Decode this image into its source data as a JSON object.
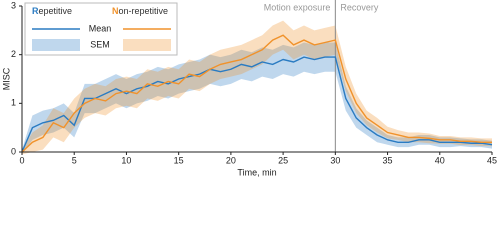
{
  "chart_data": {
    "type": "line",
    "xlabel": "Time, min",
    "ylabel": "MISC",
    "x": [
      0,
      1,
      2,
      3,
      4,
      5,
      6,
      7,
      8,
      9,
      10,
      11,
      12,
      13,
      14,
      15,
      16,
      17,
      18,
      19,
      20,
      21,
      22,
      23,
      24,
      25,
      26,
      27,
      28,
      29,
      30,
      31,
      32,
      33,
      34,
      35,
      36,
      37,
      38,
      39,
      40,
      41,
      42,
      43,
      44,
      45
    ],
    "series": [
      {
        "name": "Repetitive",
        "color": "#2a7bc2",
        "values": [
          0,
          0.5,
          0.6,
          0.65,
          0.75,
          0.55,
          1.1,
          1.1,
          1.2,
          1.3,
          1.2,
          1.3,
          1.35,
          1.45,
          1.4,
          1.5,
          1.55,
          1.6,
          1.7,
          1.65,
          1.7,
          1.8,
          1.75,
          1.85,
          1.8,
          1.9,
          1.85,
          1.95,
          1.9,
          1.95,
          1.95,
          1.1,
          0.7,
          0.5,
          0.35,
          0.25,
          0.2,
          0.2,
          0.25,
          0.25,
          0.2,
          0.2,
          0.2,
          0.18,
          0.18,
          0.15
        ],
        "sem": [
          0.05,
          0.25,
          0.25,
          0.25,
          0.25,
          0.25,
          0.3,
          0.3,
          0.3,
          0.3,
          0.3,
          0.3,
          0.3,
          0.3,
          0.3,
          0.3,
          0.3,
          0.3,
          0.3,
          0.3,
          0.3,
          0.3,
          0.3,
          0.3,
          0.3,
          0.3,
          0.3,
          0.3,
          0.3,
          0.3,
          0.3,
          0.25,
          0.2,
          0.15,
          0.15,
          0.1,
          0.1,
          0.1,
          0.1,
          0.1,
          0.1,
          0.1,
          0.08,
          0.08,
          0.08,
          0.08
        ]
      },
      {
        "name": "Non-repetitive",
        "color": "#f0922b",
        "values": [
          0,
          0.2,
          0.3,
          0.6,
          0.5,
          0.8,
          1.0,
          1.1,
          1.05,
          1.2,
          1.25,
          1.2,
          1.4,
          1.35,
          1.45,
          1.4,
          1.6,
          1.55,
          1.7,
          1.8,
          1.85,
          1.9,
          2.0,
          2.1,
          2.3,
          2.4,
          2.2,
          2.3,
          2.2,
          2.25,
          2.3,
          1.5,
          1.0,
          0.7,
          0.55,
          0.4,
          0.35,
          0.3,
          0.3,
          0.28,
          0.25,
          0.25,
          0.22,
          0.22,
          0.2,
          0.2
        ],
        "sem": [
          0.05,
          0.2,
          0.25,
          0.3,
          0.3,
          0.3,
          0.3,
          0.3,
          0.3,
          0.3,
          0.3,
          0.3,
          0.3,
          0.3,
          0.3,
          0.3,
          0.3,
          0.3,
          0.3,
          0.3,
          0.3,
          0.3,
          0.3,
          0.3,
          0.3,
          0.3,
          0.3,
          0.3,
          0.3,
          0.3,
          0.3,
          0.25,
          0.2,
          0.15,
          0.15,
          0.12,
          0.1,
          0.1,
          0.1,
          0.1,
          0.08,
          0.08,
          0.08,
          0.08,
          0.08,
          0.08
        ]
      }
    ],
    "legend_rows": [
      "Mean",
      "SEM"
    ],
    "phase_boundary": 30,
    "annotations": [
      "Motion exposure",
      "Recovery"
    ],
    "xlim": [
      0,
      45
    ],
    "xticks": [
      0,
      5,
      10,
      15,
      20,
      25,
      30,
      35,
      40,
      45
    ],
    "ylim": [
      0,
      3
    ],
    "yticks": [
      0,
      1,
      2,
      3
    ]
  }
}
